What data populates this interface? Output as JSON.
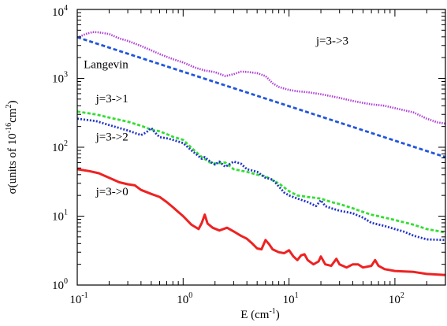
{
  "chart_data": {
    "type": "line",
    "xscale": "log",
    "yscale": "log",
    "xlim": [
      0.1,
      300
    ],
    "ylim": [
      1,
      10000
    ],
    "xlabel": {
      "main": "E (cm",
      "sup": "-1",
      "tail": ")"
    },
    "ylabel": {
      "main": "σ(units of 10",
      "sup1": "-16",
      "mid": "cm",
      "sup2": "2",
      "tail": ")"
    },
    "x_ticks": [
      {
        "value": 0.1,
        "base": "10",
        "exp": "-1"
      },
      {
        "value": 1,
        "base": "10",
        "exp": "0"
      },
      {
        "value": 10,
        "base": "10",
        "exp": "1"
      },
      {
        "value": 100,
        "base": "10",
        "exp": "2"
      }
    ],
    "y_ticks": [
      {
        "value": 1,
        "base": "10",
        "exp": "0"
      },
      {
        "value": 10,
        "base": "10",
        "exp": "1"
      },
      {
        "value": 100,
        "base": "10",
        "exp": "2"
      },
      {
        "value": 1000,
        "base": "10",
        "exp": "3"
      },
      {
        "value": 10000,
        "base": "10",
        "exp": "4"
      }
    ],
    "grid": false,
    "series": [
      {
        "name": "j=3->3",
        "color": "#b040d8",
        "dash": "1.5,1.5",
        "width": 2.6,
        "x": [
          0.1,
          0.12,
          0.14,
          0.16,
          0.2,
          0.25,
          0.3,
          0.4,
          0.5,
          0.6,
          0.8,
          1.0,
          1.3,
          1.6,
          2.0,
          2.5,
          3.0,
          3.5,
          4.0,
          5,
          6,
          7,
          8,
          10,
          12,
          15,
          20,
          25,
          30,
          40,
          50,
          60,
          80,
          100,
          150,
          200,
          250,
          300
        ],
        "y": [
          3900,
          4400,
          4700,
          4650,
          4400,
          3800,
          3500,
          2950,
          2550,
          2250,
          1900,
          1700,
          1430,
          1300,
          1230,
          1080,
          1150,
          1250,
          1240,
          1190,
          1080,
          850,
          750,
          680,
          650,
          630,
          590,
          550,
          520,
          470,
          440,
          420,
          400,
          370,
          320,
          260,
          230,
          220
        ]
      },
      {
        "name": "Langevin",
        "color": "#2255dd",
        "dash": "5,3",
        "width": 2.8,
        "x": [
          0.1,
          300
        ],
        "y": [
          3950,
          72
        ]
      },
      {
        "name": "j=3->1",
        "color": "#33dd33",
        "dash": "4,2.5",
        "width": 2.8,
        "x": [
          0.1,
          0.15,
          0.2,
          0.3,
          0.4,
          0.5,
          0.55,
          0.6,
          0.7,
          0.8,
          1.0,
          1.2,
          1.5,
          1.8,
          2.0,
          2.5,
          3,
          4,
          5,
          6,
          7,
          8,
          10,
          12,
          15,
          20,
          25,
          30,
          40,
          50,
          60,
          80,
          100,
          150,
          200,
          300
        ],
        "y": [
          330,
          300,
          270,
          235,
          205,
          180,
          175,
          170,
          155,
          142,
          128,
          98,
          72,
          60,
          58,
          60,
          48,
          44,
          40,
          38,
          33,
          30,
          23,
          20,
          19,
          18,
          16,
          15,
          13,
          11.5,
          10.5,
          9.5,
          8.8,
          7.5,
          6.5,
          5.8
        ]
      },
      {
        "name": "j=3->2",
        "color": "#2233cc",
        "dash": "2,2",
        "width": 2.8,
        "x": [
          0.1,
          0.15,
          0.2,
          0.3,
          0.4,
          0.45,
          0.5,
          0.55,
          0.6,
          0.7,
          0.8,
          1.0,
          1.2,
          1.5,
          1.6,
          1.8,
          2.0,
          2.2,
          2.5,
          3,
          3.5,
          4,
          5,
          6,
          7,
          8,
          9,
          10,
          12,
          15,
          18,
          20,
          22,
          25,
          30,
          40,
          50,
          60,
          80,
          100,
          120,
          150,
          200,
          300
        ],
        "y": [
          260,
          240,
          210,
          175,
          150,
          165,
          190,
          160,
          140,
          135,
          128,
          115,
          90,
          68,
          72,
          62,
          56,
          62,
          52,
          62,
          58,
          48,
          44,
          36,
          34,
          27,
          22,
          20,
          18,
          16,
          14,
          17,
          14,
          13,
          12,
          11,
          9.5,
          8,
          7.2,
          6.5,
          6.0,
          5.2,
          4.6,
          4.5
        ]
      },
      {
        "name": "j=3->0",
        "color": "#ee2222",
        "dash": "",
        "width": 3.0,
        "x": [
          0.1,
          0.13,
          0.16,
          0.2,
          0.25,
          0.3,
          0.35,
          0.4,
          0.5,
          0.6,
          0.7,
          0.8,
          0.9,
          1.0,
          1.2,
          1.4,
          1.5,
          1.6,
          1.7,
          1.9,
          2.2,
          2.6,
          3.0,
          3.5,
          4.0,
          4.5,
          5,
          5.5,
          6,
          6.5,
          7,
          8,
          9,
          10,
          11,
          12,
          13,
          14,
          15,
          17,
          19,
          20,
          22,
          25,
          28,
          30,
          35,
          40,
          45,
          50,
          60,
          65,
          70,
          80,
          100,
          150,
          200,
          300
        ],
        "y": [
          48,
          45,
          42,
          36,
          31,
          29,
          28,
          24,
          21,
          19,
          16,
          13.5,
          11.5,
          10,
          7.5,
          6.5,
          8,
          10.5,
          7.8,
          6.8,
          6.2,
          6.8,
          6.0,
          5.2,
          4.7,
          4.0,
          3.4,
          3.3,
          4.5,
          3.9,
          3.3,
          3.0,
          2.9,
          3.2,
          2.6,
          2.3,
          2.7,
          2.8,
          2.3,
          2.0,
          2.2,
          2.6,
          2.0,
          1.9,
          2.4,
          2.0,
          1.8,
          2.0,
          2.0,
          1.8,
          1.9,
          2.3,
          1.9,
          1.7,
          1.6,
          1.55,
          1.45,
          1.4
        ]
      }
    ],
    "annotations": [
      {
        "text": "j=3->3",
        "x": 18,
        "y": 3100
      },
      {
        "text": "Langevin",
        "x": 0.115,
        "y": 1400
      },
      {
        "text": "j=3->1",
        "x": 0.15,
        "y": 450
      },
      {
        "text": "j=3->2",
        "x": 0.15,
        "y": 125
      },
      {
        "text": "j=3->0",
        "x": 0.15,
        "y": 20
      }
    ]
  }
}
